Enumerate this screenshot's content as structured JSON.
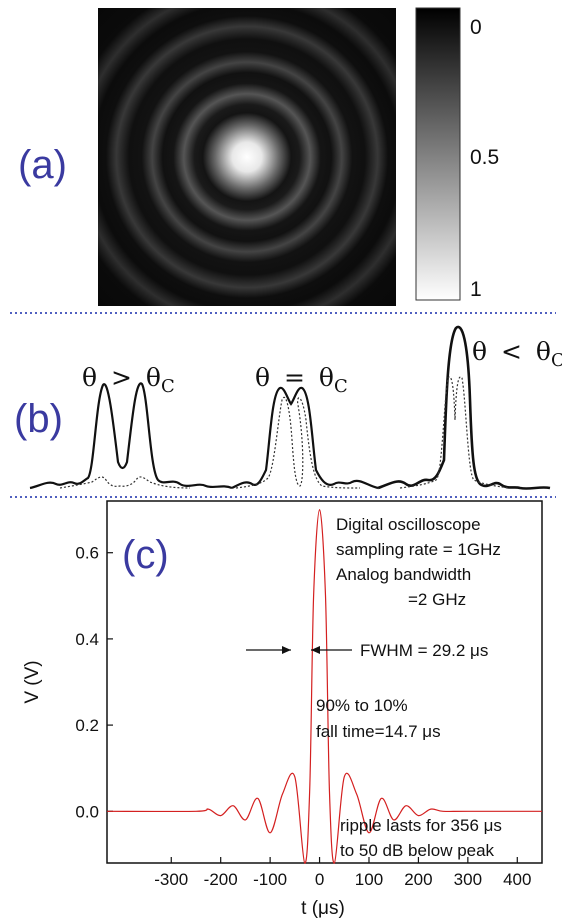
{
  "panel_a": {
    "label": "(a)",
    "colorbar_ticks": [
      "0",
      "0.5",
      "1"
    ],
    "colors": {
      "high": "#ffffff",
      "low": "#000000"
    }
  },
  "panel_b": {
    "label": "(b)",
    "groups": [
      {
        "theta": "θ",
        "rel": ">",
        "theta_c": "θ",
        "sub": "C"
      },
      {
        "theta": "θ",
        "rel": "=",
        "theta_c": "θ",
        "sub": "C"
      },
      {
        "theta": "θ",
        "rel": "<",
        "theta_c": "θ",
        "sub": "C"
      }
    ]
  },
  "chart_data": {
    "type": "line",
    "label": "(c)",
    "xlabel": "t (μs)",
    "ylabel": "V (V)",
    "xlim": [
      -430,
      450
    ],
    "ylim": [
      -0.12,
      0.72
    ],
    "xticks": [
      -300,
      -200,
      -100,
      0,
      100,
      200,
      300,
      400
    ],
    "yticks": [
      0.0,
      0.2,
      0.4,
      0.6
    ],
    "ytick_labels": [
      "0.0",
      "0.2",
      "0.4",
      "0.6"
    ],
    "series": [
      {
        "color": "#d42020",
        "x": [
          -430,
          -250,
          -225,
          -200,
          -175,
          -150,
          -125,
          -100,
          -75,
          -50,
          -30,
          -20,
          -12,
          0,
          12,
          20,
          30,
          50,
          75,
          100,
          125,
          150,
          175,
          200,
          225,
          250,
          300,
          450
        ],
        "y": [
          0,
          0,
          0.005,
          -0.01,
          0.013,
          -0.02,
          0.03,
          -0.05,
          0.04,
          0.08,
          -0.12,
          0.05,
          0.5,
          0.7,
          0.5,
          0.05,
          -0.12,
          0.08,
          0.04,
          -0.05,
          0.03,
          -0.02,
          0.013,
          -0.01,
          0.005,
          0,
          0,
          0
        ]
      }
    ],
    "annotations": {
      "info": [
        "Digital oscilloscope",
        "sampling rate = 1GHz",
        "Analog bandwidth",
        "=2 GHz"
      ],
      "fwhm": "FWHM = 29.2 μs",
      "fall": [
        "90% to 10%",
        "fall time=14.7 μs"
      ],
      "ripple": [
        "ripple lasts for 356 μs",
        "to 50 dB below peak"
      ]
    }
  }
}
